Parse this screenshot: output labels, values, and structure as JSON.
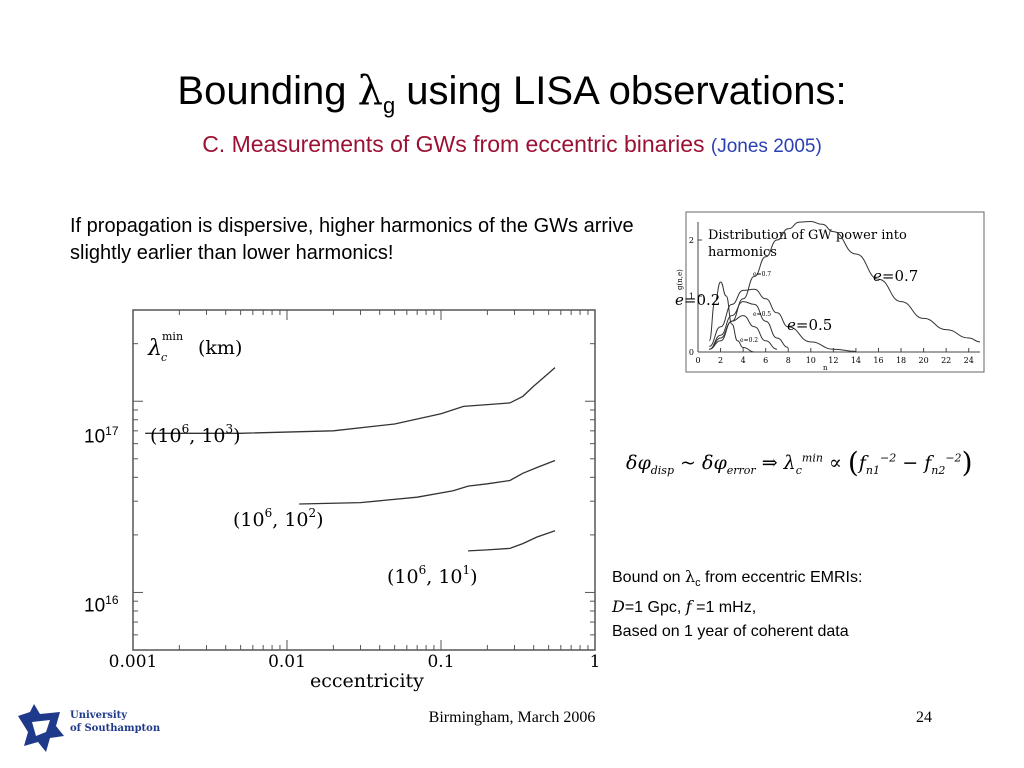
{
  "slide": {
    "title_pre": "Bounding ",
    "title_symbol": "λ",
    "title_sub": "g",
    "title_post": " using LISA observations:",
    "subtitle": "C. Measurements of GWs from eccentric binaries",
    "subtitle_cite": "(Jones 2005)",
    "intro": "If propagation is dispersive, higher harmonics of the GWs arrive slightly earlier than lower harmonics!",
    "tick_17": "10",
    "tick_17_exp": "17",
    "tick_16": "10",
    "tick_16_exp": "16",
    "bound_line1_pre": "Bound on ",
    "bound_symbol": "λ",
    "bound_sub": "c",
    "bound_line1_post": " from eccentric EMRIs:",
    "bound_D": "D",
    "bound_D_val": "=1 Gpc, ",
    "bound_f": "f",
    "bound_f_val": " =1 mHz,",
    "bound_line3": "Based on 1 year of coherent data",
    "footer": "Birmingham, March 2006",
    "page_number": "24",
    "logo_line1": "University",
    "logo_line2": "of Southampton",
    "brand_color": "#1f3a8a",
    "subtitle_color": "#9b1133",
    "cite_color": "#2a3fb5"
  },
  "formula": {
    "text": "δφdisp ~ δφerror ⇒ λcmin ∝ (fn1−2 − fn2−2)"
  },
  "chart_data": [
    {
      "type": "line",
      "ylabel_symbol": "λ",
      "ylabel_sub": "c",
      "ylabel_sup": "min",
      "ylabel_unit": "(km)",
      "xlabel": "eccentricity",
      "xscale": "log",
      "yscale": "log",
      "xlim": [
        0.001,
        1
      ],
      "ylim": [
        5000000000000000.0,
        3e+17
      ],
      "xticks": [
        0.001,
        0.01,
        0.1,
        1
      ],
      "xtick_labels": [
        "0.001",
        "0.01",
        "0.1",
        "1"
      ],
      "series": [
        {
          "name": "(10^6, 10^3)",
          "label_a": "(10",
          "label_b": "6",
          "label_c": ", 10",
          "label_d": "3",
          "label_e": ")",
          "x": [
            0.0012,
            0.005,
            0.02,
            0.05,
            0.1,
            0.14,
            0.2,
            0.28,
            0.34,
            0.4,
            0.5,
            0.55
          ],
          "y": [
            6.8e+16,
            6.8e+16,
            7e+16,
            7.6e+16,
            8.6e+16,
            9.4e+16,
            9.6e+16,
            9.8e+16,
            1.06e+17,
            1.2e+17,
            1.4e+17,
            1.5e+17
          ]
        },
        {
          "name": "(10^6, 10^2)",
          "label_a": "(10",
          "label_b": "6",
          "label_c": ", 10",
          "label_d": "2",
          "label_e": ")",
          "x": [
            0.012,
            0.03,
            0.07,
            0.12,
            0.15,
            0.2,
            0.28,
            0.34,
            0.42,
            0.55
          ],
          "y": [
            2.9e+16,
            2.95e+16,
            3.15e+16,
            3.4e+16,
            3.6e+16,
            3.7e+16,
            3.85e+16,
            4.2e+16,
            4.5e+16,
            4.9e+16
          ]
        },
        {
          "name": "(10^6, 10^1)",
          "label_a": "(10",
          "label_b": "6",
          "label_c": ", 10",
          "label_d": "1",
          "label_e": ")",
          "x": [
            0.15,
            0.2,
            0.28,
            0.34,
            0.42,
            0.55
          ],
          "y": [
            1.65e+16,
            1.67e+16,
            1.7e+16,
            1.8e+16,
            1.95e+16,
            2.1e+16
          ]
        }
      ]
    },
    {
      "type": "line",
      "title": "Distribution of GW power into harmonics",
      "xlabel": "n",
      "ylabel": "g(n,e)",
      "xlim": [
        0,
        25
      ],
      "ylim": [
        0,
        2.5
      ],
      "xticks": [
        0,
        2,
        4,
        6,
        8,
        10,
        12,
        14,
        16,
        18,
        20,
        22,
        24
      ],
      "yticks": [
        0,
        1,
        2
      ],
      "legend": [
        "e=0.7",
        "e=0.5",
        "e=0.2"
      ],
      "annotations": [
        {
          "sym": "e",
          "text": "=0.7"
        },
        {
          "sym": "e",
          "text": "=0.2"
        },
        {
          "sym": "e",
          "text": "=0.5"
        }
      ],
      "series": [
        {
          "name": "e=0.7",
          "x": [
            1,
            2,
            3,
            4,
            5,
            6,
            7,
            8,
            9,
            10,
            11,
            12,
            14,
            16,
            18,
            20,
            22,
            24,
            25
          ],
          "y": [
            0.05,
            0.2,
            0.55,
            0.95,
            1.35,
            1.7,
            2.0,
            2.2,
            2.32,
            2.33,
            2.28,
            2.15,
            1.75,
            1.3,
            0.9,
            0.6,
            0.4,
            0.25,
            0.18
          ]
        },
        {
          "name": "e=0.5",
          "x": [
            1,
            2,
            3,
            4,
            5,
            6,
            7,
            8,
            10,
            12,
            14
          ],
          "y": [
            0.1,
            0.45,
            0.85,
            1.1,
            1.12,
            0.95,
            0.7,
            0.45,
            0.18,
            0.05,
            0.01
          ]
        },
        {
          "name": "e=0.2",
          "x": [
            1,
            1.5,
            2,
            2.5,
            3,
            3.5,
            4,
            5
          ],
          "y": [
            0.2,
            0.9,
            1.25,
            1.0,
            0.5,
            0.2,
            0.08,
            0.0
          ]
        },
        {
          "name": "",
          "x": [
            1,
            2,
            3,
            4,
            5,
            6,
            7,
            8
          ],
          "y": [
            0.05,
            0.3,
            0.65,
            0.9,
            0.85,
            0.55,
            0.25,
            0.08
          ]
        },
        {
          "name": "",
          "x": [
            1,
            2,
            3,
            4,
            5,
            6,
            7
          ],
          "y": [
            0.05,
            0.25,
            0.55,
            0.65,
            0.45,
            0.2,
            0.05
          ]
        }
      ]
    }
  ]
}
